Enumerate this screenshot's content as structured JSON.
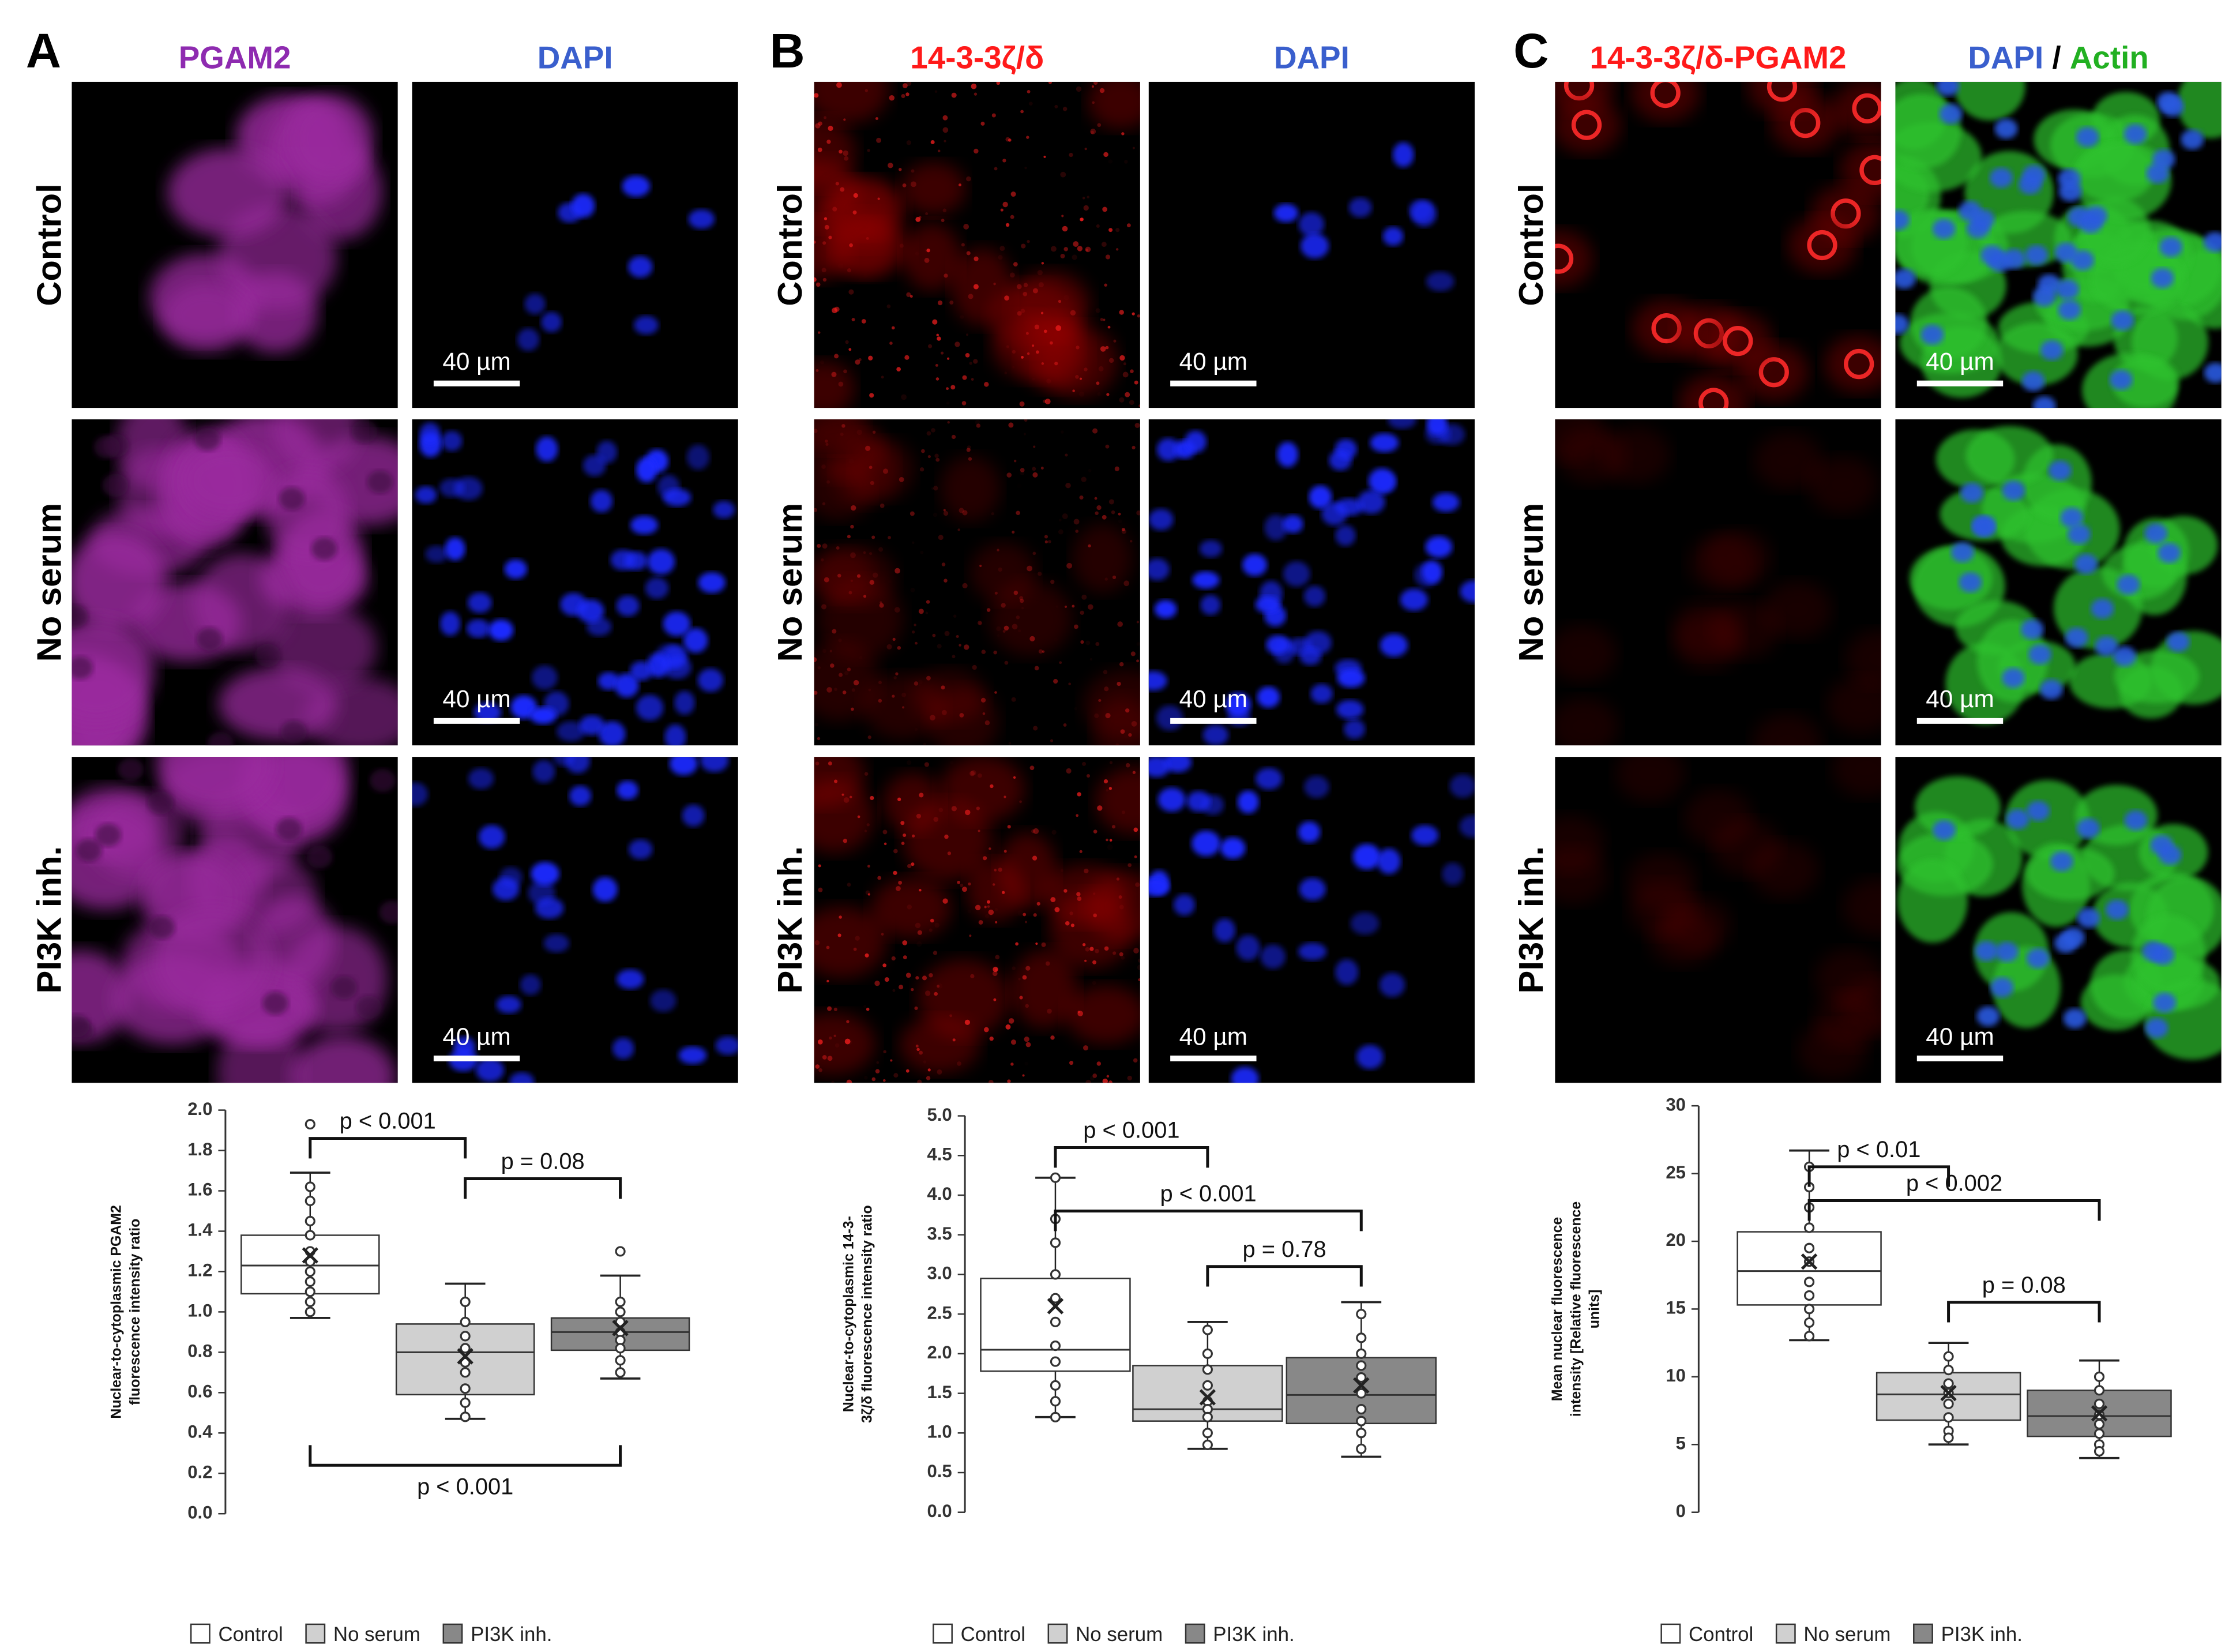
{
  "panels": [
    {
      "letter": "A",
      "rows": [
        "Control",
        "No serum",
        "PI3K inh."
      ],
      "columns": [
        [
          {
            "text": "PGAM2",
            "color": "#8e2bb0"
          }
        ],
        [
          {
            "text": "DAPI",
            "color": "#3a5fcd"
          }
        ]
      ],
      "scale_bars": [
        "40 µm",
        "40 µm",
        "40 µm"
      ]
    },
    {
      "letter": "B",
      "rows": [
        "Control",
        "No serum",
        "PI3K inh."
      ],
      "columns": [
        [
          {
            "text": "14-3-3ζ/δ",
            "color": "#ff1a1a"
          }
        ],
        [
          {
            "text": "DAPI",
            "color": "#3a5fcd"
          }
        ]
      ],
      "scale_bars": [
        "40 µm",
        "40 µm",
        "40 µm"
      ]
    },
    {
      "letter": "C",
      "rows": [
        "Control",
        "No serum",
        "PI3K inh."
      ],
      "columns": [
        [
          {
            "text": "14-3-3ζ/δ-PGAM2",
            "color": "#ff1a1a"
          }
        ],
        [
          {
            "text": "DAPI",
            "color": "#3a5fcd"
          },
          {
            "text": "/",
            "color": "#000000"
          },
          {
            "text": "Actin",
            "color": "#22b022"
          }
        ]
      ],
      "scale_bars": [
        "40 µm",
        "40 µm",
        "40 µm"
      ]
    }
  ],
  "chart_data": [
    {
      "type": "box",
      "ylabel": [
        "Nuclear-to-cytoplasmic PGAM2",
        "fluorescence intensity ratio"
      ],
      "categories": [
        "Control",
        "No serum",
        "PI3K inh."
      ],
      "colors": [
        "#ffffff",
        "#d0d0d0",
        "#888888"
      ],
      "ylim": [
        0,
        2.0
      ],
      "yticks": [
        {
          "value": 0,
          "label": "0.0"
        },
        0.2,
        0.4,
        0.6,
        0.8,
        {
          "value": 1,
          "label": "1.0"
        },
        1.2,
        1.4,
        1.6,
        1.8,
        {
          "value": 2,
          "label": "2.0"
        }
      ],
      "boxes": [
        {
          "min": 0.97,
          "q1": 1.09,
          "median": 1.23,
          "q3": 1.38,
          "max": 1.69,
          "mean": 1.28,
          "points": [
            1.93,
            1.62,
            1.55,
            1.45,
            1.38,
            1.3,
            1.25,
            1.2,
            1.15,
            1.1,
            1.05,
            1.0
          ]
        },
        {
          "min": 0.47,
          "q1": 0.59,
          "median": 0.8,
          "q3": 0.94,
          "max": 1.14,
          "mean": 0.78,
          "points": [
            1.05,
            0.95,
            0.88,
            0.82,
            0.75,
            0.7,
            0.62,
            0.55,
            0.48
          ]
        },
        {
          "min": 0.67,
          "q1": 0.81,
          "median": 0.9,
          "q3": 0.97,
          "max": 1.18,
          "mean": 0.92,
          "points": [
            1.3,
            1.05,
            1.0,
            0.95,
            0.9,
            0.86,
            0.82,
            0.76,
            0.7
          ]
        }
      ],
      "annotations": [
        "p < 0.001",
        "p = 0.08",
        "p < 0.001"
      ]
    },
    {
      "type": "box",
      "ylabel": [
        "Nuclear-to-cytoplasmic 14-3-",
        "3ζ/δ fluorescence intensity ratio"
      ],
      "categories": [
        "Control",
        "No serum",
        "PI3K inh."
      ],
      "colors": [
        "#ffffff",
        "#d0d0d0",
        "#888888"
      ],
      "ylim": [
        0,
        5.0
      ],
      "yticks": [
        {
          "value": 0,
          "label": "0.0"
        },
        0.5,
        {
          "value": 1,
          "label": "1.0"
        },
        1.5,
        {
          "value": 2,
          "label": "2.0"
        },
        2.5,
        {
          "value": 3,
          "label": "3.0"
        },
        3.5,
        {
          "value": 4,
          "label": "4.0"
        },
        4.5,
        {
          "value": 5,
          "label": "5.0"
        }
      ],
      "boxes": [
        {
          "min": 1.2,
          "q1": 1.78,
          "median": 2.05,
          "q3": 2.95,
          "max": 4.22,
          "mean": 2.6,
          "points": [
            4.22,
            3.7,
            3.4,
            3.0,
            2.7,
            2.4,
            2.1,
            1.9,
            1.6,
            1.4,
            1.2
          ]
        },
        {
          "min": 0.8,
          "q1": 1.15,
          "median": 1.3,
          "q3": 1.85,
          "max": 2.4,
          "mean": 1.45,
          "points": [
            2.3,
            2.0,
            1.8,
            1.6,
            1.4,
            1.3,
            1.2,
            1.0,
            0.85
          ]
        },
        {
          "min": 0.7,
          "q1": 1.12,
          "median": 1.48,
          "q3": 1.95,
          "max": 2.65,
          "mean": 1.6,
          "points": [
            2.5,
            2.2,
            2.0,
            1.85,
            1.7,
            1.5,
            1.3,
            1.15,
            1.0,
            0.8
          ]
        }
      ],
      "annotations": [
        "p < 0.001",
        "p < 0.001",
        "p = 0.78"
      ]
    },
    {
      "type": "box",
      "ylabel": [
        "Mean nuclear fluorescence",
        "intensity [Relative fluorescence",
        "units]"
      ],
      "categories": [
        "Control",
        "No serum",
        "PI3K inh."
      ],
      "colors": [
        "#ffffff",
        "#d0d0d0",
        "#888888"
      ],
      "ylim": [
        0,
        30
      ],
      "yticks": [
        0,
        5,
        10,
        15,
        20,
        25,
        30
      ],
      "boxes": [
        {
          "min": 12.7,
          "q1": 15.3,
          "median": 17.8,
          "q3": 20.7,
          "max": 26.7,
          "mean": 18.5,
          "points": [
            25.5,
            24,
            22.5,
            21,
            19.5,
            18.5,
            17,
            16,
            15,
            14,
            13
          ]
        },
        {
          "min": 5,
          "q1": 6.8,
          "median": 8.7,
          "q3": 10.3,
          "max": 12.5,
          "mean": 8.8,
          "points": [
            11.5,
            10.5,
            9.5,
            8.8,
            8,
            7,
            6,
            5.5
          ]
        },
        {
          "min": 4,
          "q1": 5.6,
          "median": 7.1,
          "q3": 9,
          "max": 11.2,
          "mean": 7.3,
          "points": [
            10,
            9,
            8,
            7.2,
            6.5,
            5.8,
            5,
            4.5
          ]
        }
      ],
      "annotations": [
        "p < 0.01",
        "p < 0.002",
        "p = 0.08"
      ]
    }
  ]
}
